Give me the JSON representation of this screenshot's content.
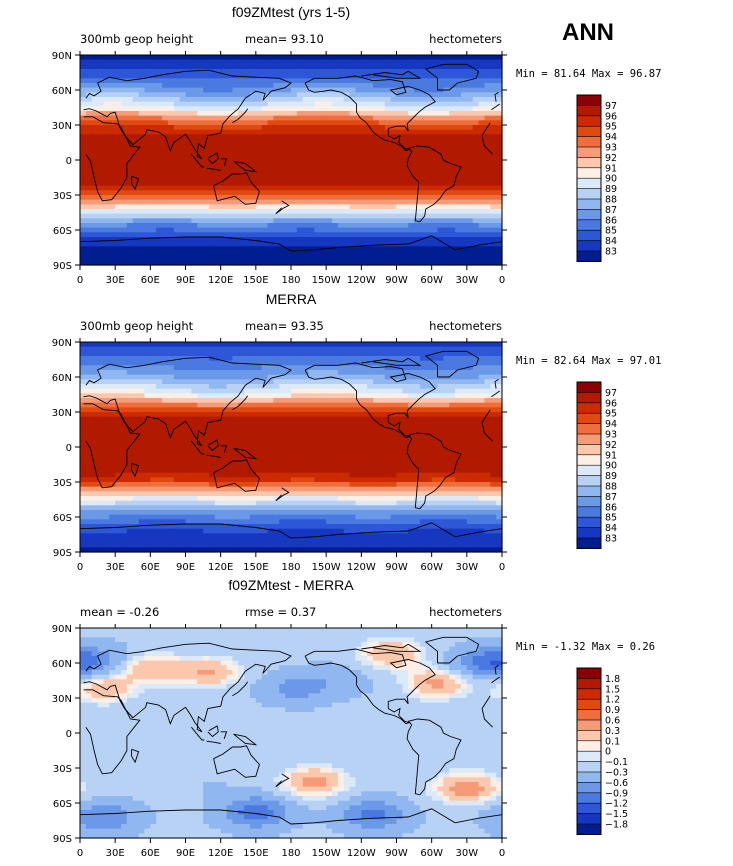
{
  "figure": {
    "season_label": "ANN"
  },
  "chart_data": [
    {
      "type": "heatmap",
      "title": "f09ZMtest (yrs 1-5)",
      "left_label": "300mb geop height",
      "center_label": "mean=   93.10",
      "right_label": "hectometers",
      "minmax_label": "Min =  81.64 Max =  96.87",
      "x_tick_labels": [
        "0",
        "30E",
        "60E",
        "90E",
        "120E",
        "150E",
        "180",
        "150W",
        "120W",
        "90W",
        "60W",
        "30W",
        "0"
      ],
      "y_tick_labels": [
        "90N",
        "60N",
        "30N",
        "0",
        "30S",
        "60S",
        "90S"
      ],
      "xlim": [
        0,
        360
      ],
      "ylim": [
        -90,
        90
      ],
      "colorbar_labels": [
        "97",
        "96",
        "95",
        "94",
        "93",
        "92",
        "91",
        "90",
        "89",
        "88",
        "87",
        "86",
        "85",
        "84",
        "83"
      ],
      "colorbar_colors": [
        "#8b0000",
        "#b21a00",
        "#cc2a00",
        "#e04a10",
        "#ee6e3e",
        "#f59b77",
        "#fbc8ad",
        "#fdeee6",
        "#dbe9f9",
        "#b8d2f6",
        "#91b7f0",
        "#6c98e8",
        "#4a79e0",
        "#2d57d6",
        "#1638c0",
        "#001e8f"
      ],
      "field": {
        "kind": "zonal",
        "lat_profile": [
          {
            "lat": 90,
            "value": 82.5
          },
          {
            "lat": 75,
            "value": 84.3
          },
          {
            "lat": 60,
            "value": 86.6
          },
          {
            "lat": 45,
            "value": 89.8
          },
          {
            "lat": 35,
            "value": 93.3
          },
          {
            "lat": 25,
            "value": 95.8
          },
          {
            "lat": 15,
            "value": 96.6
          },
          {
            "lat": 0,
            "value": 96.8
          },
          {
            "lat": -15,
            "value": 96.5
          },
          {
            "lat": -25,
            "value": 95.6
          },
          {
            "lat": -35,
            "value": 92.6
          },
          {
            "lat": -45,
            "value": 89.2
          },
          {
            "lat": -55,
            "value": 86.2
          },
          {
            "lat": -65,
            "value": 84.2
          },
          {
            "lat": -75,
            "value": 82.7
          },
          {
            "lat": -90,
            "value": 81.8
          }
        ],
        "wave_amplitude": 0.9,
        "wave_amplitude_sh": 0.3
      }
    },
    {
      "type": "heatmap",
      "title": "MERRA",
      "left_label": "300mb geop height",
      "center_label": "mean=   93.35",
      "right_label": "hectometers",
      "minmax_label": "Min =  82.64 Max =  97.01",
      "x_tick_labels": [
        "0",
        "30E",
        "60E",
        "90E",
        "120E",
        "150E",
        "180",
        "150W",
        "120W",
        "90W",
        "60W",
        "30W",
        "0"
      ],
      "y_tick_labels": [
        "90N",
        "60N",
        "30N",
        "0",
        "30S",
        "60S",
        "90S"
      ],
      "xlim": [
        0,
        360
      ],
      "ylim": [
        -90,
        90
      ],
      "colorbar_labels": [
        "97",
        "96",
        "95",
        "94",
        "93",
        "92",
        "91",
        "90",
        "89",
        "88",
        "87",
        "86",
        "85",
        "84",
        "83"
      ],
      "colorbar_colors": [
        "#8b0000",
        "#b21a00",
        "#cc2a00",
        "#e04a10",
        "#ee6e3e",
        "#f59b77",
        "#fbc8ad",
        "#fdeee6",
        "#dbe9f9",
        "#b8d2f6",
        "#91b7f0",
        "#6c98e8",
        "#4a79e0",
        "#2d57d6",
        "#1638c0",
        "#001e8f"
      ],
      "field": {
        "kind": "zonal",
        "lat_profile": [
          {
            "lat": 90,
            "value": 83.6
          },
          {
            "lat": 75,
            "value": 85.2
          },
          {
            "lat": 60,
            "value": 87.1
          },
          {
            "lat": 45,
            "value": 90.2
          },
          {
            "lat": 35,
            "value": 93.7
          },
          {
            "lat": 25,
            "value": 96.1
          },
          {
            "lat": 15,
            "value": 96.8
          },
          {
            "lat": 0,
            "value": 96.95
          },
          {
            "lat": -15,
            "value": 96.7
          },
          {
            "lat": -25,
            "value": 95.9
          },
          {
            "lat": -35,
            "value": 93.1
          },
          {
            "lat": -45,
            "value": 89.7
          },
          {
            "lat": -55,
            "value": 86.8
          },
          {
            "lat": -65,
            "value": 84.9
          },
          {
            "lat": -75,
            "value": 83.6
          },
          {
            "lat": -90,
            "value": 82.8
          }
        ],
        "wave_amplitude": 0.8,
        "wave_amplitude_sh": 0.3
      }
    },
    {
      "type": "heatmap",
      "title": "f09ZMtest - MERRA",
      "left_label": "mean =   -0.26",
      "center_label": "rmse =   0.37",
      "right_label": "hectometers",
      "minmax_label": "Min =  -1.32 Max =   0.26",
      "x_tick_labels": [
        "0",
        "30E",
        "60E",
        "90E",
        "120E",
        "150E",
        "180",
        "150W",
        "120W",
        "90W",
        "60W",
        "30W",
        "0"
      ],
      "y_tick_labels": [
        "90N",
        "60N",
        "30N",
        "0",
        "30S",
        "60S",
        "90S"
      ],
      "xlim": [
        0,
        360
      ],
      "ylim": [
        -90,
        90
      ],
      "colorbar_labels": [
        "1.8",
        "1.5",
        "1.2",
        "0.9",
        "0.6",
        "0.3",
        "0.1",
        "0",
        "−0.1",
        "−0.3",
        "−0.6",
        "−0.9",
        "−1.2",
        "−1.5",
        "−1.8"
      ],
      "colorbar_colors": [
        "#8b0000",
        "#b21a00",
        "#cc2a00",
        "#e04a10",
        "#ee6e3e",
        "#f59b77",
        "#fbc8ad",
        "#fdeee6",
        "#dbe9f9",
        "#b8d2f6",
        "#91b7f0",
        "#6c98e8",
        "#4a79e0",
        "#2d57d6",
        "#1638c0",
        "#001e8f"
      ],
      "field": {
        "kind": "difference",
        "base": -0.25,
        "features": [
          {
            "lon": 60,
            "lat": 55,
            "value": 0.25
          },
          {
            "lon": 110,
            "lat": 52,
            "value": 0.3
          },
          {
            "lon": 265,
            "lat": 68,
            "value": 0.3
          },
          {
            "lon": 305,
            "lat": 43,
            "value": 0.35
          },
          {
            "lon": 20,
            "lat": 38,
            "value": 0.25
          },
          {
            "lon": 182,
            "lat": 38,
            "value": -0.7
          },
          {
            "lon": 220,
            "lat": 45,
            "value": -0.5
          },
          {
            "lon": 345,
            "lat": 60,
            "value": -0.9
          },
          {
            "lon": 10,
            "lat": 62,
            "value": -0.8
          },
          {
            "lon": 200,
            "lat": -42,
            "value": 0.4
          },
          {
            "lon": 330,
            "lat": -47,
            "value": 0.45
          },
          {
            "lon": 110,
            "lat": -45,
            "value": -0.3
          },
          {
            "lon": 50,
            "lat": -45,
            "value": -0.2
          },
          {
            "lon": 150,
            "lat": -68,
            "value": -1.1
          },
          {
            "lon": 250,
            "lat": -70,
            "value": -1.0
          },
          {
            "lon": 20,
            "lat": -72,
            "value": -0.9
          },
          {
            "lon": 150,
            "lat": 5,
            "value": -0.15
          },
          {
            "lon": 280,
            "lat": 15,
            "value": -0.15
          }
        ]
      }
    }
  ]
}
